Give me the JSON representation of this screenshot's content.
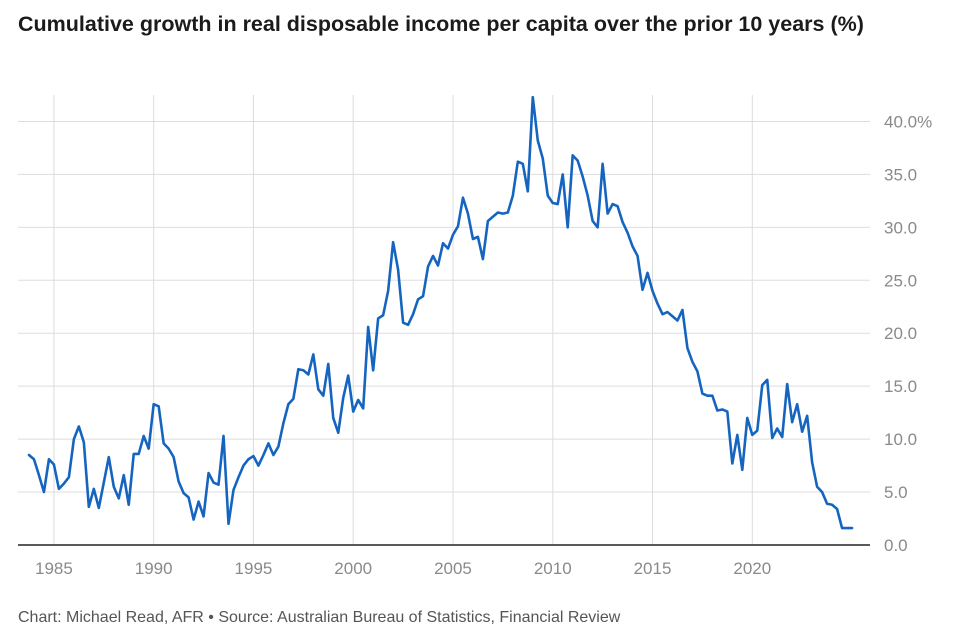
{
  "title": "Cumulative growth in real disposable income per capita over the prior 10 years (%)",
  "footer": "Chart: Michael Read, AFR • Source: Australian Bureau of Statistics, Financial Review",
  "colors": {
    "line": "#1565c0",
    "grid": "#dddddd",
    "axis": "#222222",
    "tick": "#8a8a8a"
  },
  "chart_data": {
    "type": "line",
    "title": "Cumulative growth in real disposable income per capita over the prior 10 years (%)",
    "xlabel": "",
    "ylabel": "",
    "xlim": [
      1983.2,
      2025.9
    ],
    "ylim": [
      0,
      42.5
    ],
    "x_ticks": [
      1985,
      1990,
      1995,
      2000,
      2005,
      2010,
      2015,
      2020
    ],
    "x_tick_labels": [
      "1985",
      "1990",
      "1995",
      "2000",
      "2005",
      "2010",
      "2015",
      "2020"
    ],
    "y_ticks": [
      0,
      5,
      10,
      15,
      20,
      25,
      30,
      35,
      40
    ],
    "y_tick_labels": [
      "0.0",
      "5.0",
      "10.0",
      "15.0",
      "20.0",
      "25.0",
      "30.0",
      "35.0",
      "40.0%"
    ],
    "grid": true,
    "legend": "none",
    "series": [
      {
        "name": "Cumulative growth (%)",
        "x": [
          1983.75,
          1984.0,
          1984.25,
          1984.5,
          1984.75,
          1985.0,
          1985.25,
          1985.5,
          1985.75,
          1986.0,
          1986.25,
          1986.5,
          1986.75,
          1987.0,
          1987.25,
          1987.5,
          1987.75,
          1988.0,
          1988.25,
          1988.5,
          1988.75,
          1989.0,
          1989.25,
          1989.5,
          1989.75,
          1990.0,
          1990.25,
          1990.5,
          1990.75,
          1991.0,
          1991.25,
          1991.5,
          1991.75,
          1992.0,
          1992.25,
          1992.5,
          1992.75,
          1993.0,
          1993.25,
          1993.5,
          1993.75,
          1994.0,
          1994.25,
          1994.5,
          1994.75,
          1995.0,
          1995.25,
          1995.5,
          1995.75,
          1996.0,
          1996.25,
          1996.5,
          1996.75,
          1997.0,
          1997.25,
          1997.5,
          1997.75,
          1998.0,
          1998.25,
          1998.5,
          1998.75,
          1999.0,
          1999.25,
          1999.5,
          1999.75,
          2000.0,
          2000.25,
          2000.5,
          2000.75,
          2001.0,
          2001.25,
          2001.5,
          2001.75,
          2002.0,
          2002.25,
          2002.5,
          2002.75,
          2003.0,
          2003.25,
          2003.5,
          2003.75,
          2004.0,
          2004.25,
          2004.5,
          2004.75,
          2005.0,
          2005.25,
          2005.5,
          2005.75,
          2006.0,
          2006.25,
          2006.5,
          2006.75,
          2007.0,
          2007.25,
          2007.5,
          2007.75,
          2008.0,
          2008.25,
          2008.5,
          2008.75,
          2009.0,
          2009.25,
          2009.5,
          2009.75,
          2010.0,
          2010.25,
          2010.5,
          2010.75,
          2011.0,
          2011.25,
          2011.5,
          2011.75,
          2012.0,
          2012.25,
          2012.5,
          2012.75,
          2013.0,
          2013.25,
          2013.5,
          2013.75,
          2014.0,
          2014.25,
          2014.5,
          2014.75,
          2015.0,
          2015.25,
          2015.5,
          2015.75,
          2016.0,
          2016.25,
          2016.5,
          2016.75,
          2017.0,
          2017.25,
          2017.5,
          2017.75,
          2018.0,
          2018.25,
          2018.5,
          2018.75,
          2019.0,
          2019.25,
          2019.5,
          2019.75,
          2020.0,
          2020.25,
          2020.5,
          2020.75,
          2021.0,
          2021.25,
          2021.5,
          2021.75,
          2022.0,
          2022.25,
          2022.5,
          2022.75,
          2023.0,
          2023.25,
          2023.5,
          2023.75,
          2024.0,
          2024.25,
          2024.5,
          2024.75,
          2025.0
        ],
        "y": [
          8.5,
          8.1,
          6.6,
          5.0,
          8.1,
          7.6,
          5.3,
          5.8,
          6.4,
          10.0,
          11.2,
          9.7,
          3.6,
          5.3,
          3.5,
          5.9,
          8.3,
          5.5,
          4.4,
          6.6,
          3.8,
          8.6,
          8.6,
          10.3,
          9.1,
          13.3,
          13.1,
          9.6,
          9.1,
          8.3,
          6.0,
          4.9,
          4.5,
          2.4,
          4.1,
          2.7,
          6.8,
          5.9,
          5.7,
          10.3,
          2.0,
          5.2,
          6.4,
          7.5,
          8.1,
          8.4,
          7.5,
          8.5,
          9.6,
          8.5,
          9.3,
          11.5,
          13.3,
          13.8,
          16.6,
          16.5,
          16.1,
          18.0,
          14.7,
          14.1,
          17.1,
          12.0,
          10.6,
          13.9,
          16.0,
          12.6,
          13.7,
          12.9,
          20.6,
          16.5,
          21.4,
          21.7,
          24.0,
          28.6,
          26.0,
          21.0,
          20.8,
          21.8,
          23.2,
          23.5,
          26.3,
          27.3,
          26.4,
          28.5,
          28.0,
          29.3,
          30.1,
          32.8,
          31.3,
          28.9,
          29.1,
          27.0,
          30.6,
          31.0,
          31.4,
          31.3,
          31.4,
          33.0,
          36.2,
          36.0,
          33.4,
          42.3,
          38.2,
          36.5,
          33.0,
          32.3,
          32.2,
          35.0,
          30.0,
          36.8,
          36.3,
          34.8,
          33.0,
          30.6,
          30.0,
          36.0,
          31.3,
          32.2,
          32.0,
          30.5,
          29.5,
          28.2,
          27.3,
          24.1,
          25.7,
          24.0,
          22.8,
          21.8,
          22.0,
          21.6,
          21.2,
          22.2,
          18.6,
          17.3,
          16.4,
          14.3,
          14.1,
          14.1,
          12.7,
          12.8,
          12.6,
          7.7,
          10.4,
          7.1,
          12.0,
          10.4,
          10.8,
          15.1,
          15.6,
          10.1,
          11.0,
          10.2,
          15.2,
          11.6,
          13.3,
          10.7,
          12.2,
          7.8,
          5.5,
          5.0,
          3.9,
          3.8,
          3.4,
          1.6,
          1.6,
          1.6
        ]
      }
    ]
  }
}
